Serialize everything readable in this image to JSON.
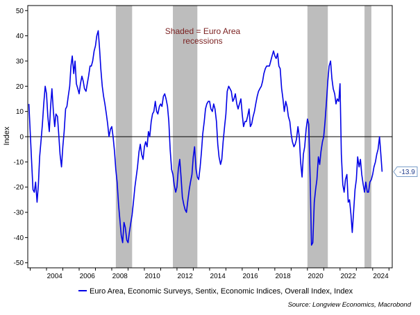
{
  "chart_data": {
    "type": "line",
    "ylabel": "Index",
    "ylim": [
      -52,
      52
    ],
    "y_ticks": [
      50,
      40,
      30,
      20,
      10,
      0,
      -10,
      -20,
      -30,
      -40,
      -50
    ],
    "xlim": [
      2002.85,
      2025.2
    ],
    "x_ticks": [
      2004,
      2006,
      2008,
      2010,
      2012,
      2014,
      2016,
      2018,
      2020,
      2022,
      2024
    ],
    "x_tick_labels": [
      "2004",
      "2006",
      "2008",
      "2010",
      "2012",
      "2014",
      "2016",
      "2018",
      "2020",
      "2022",
      "2024"
    ],
    "zero_line": 0,
    "recessions": [
      {
        "start": 2008.25,
        "end": 2009.25
      },
      {
        "start": 2011.75,
        "end": 2013.25
      },
      {
        "start": 2020.0,
        "end": 2021.25
      },
      {
        "start": 2023.5,
        "end": 2023.92
      }
    ],
    "annotation_lines": [
      "Shaded = Euro Area",
      "recessions"
    ],
    "annotation_color": "#7a1f1f",
    "series": [
      {
        "name": "Euro Area, Economic Surveys, Sentix, Economic Indices, Overall Index, Index",
        "color": "#0000e6",
        "last_value_label": "-13.9",
        "points": [
          [
            2002.92,
            13
          ],
          [
            2003.0,
            2
          ],
          [
            2003.08,
            -9
          ],
          [
            2003.17,
            -21
          ],
          [
            2003.25,
            -22
          ],
          [
            2003.33,
            -18
          ],
          [
            2003.42,
            -26
          ],
          [
            2003.5,
            -19
          ],
          [
            2003.58,
            -8
          ],
          [
            2003.67,
            -1
          ],
          [
            2003.75,
            5
          ],
          [
            2003.83,
            13
          ],
          [
            2003.92,
            20
          ],
          [
            2004.0,
            17
          ],
          [
            2004.08,
            8
          ],
          [
            2004.17,
            2
          ],
          [
            2004.25,
            12
          ],
          [
            2004.33,
            19
          ],
          [
            2004.42,
            10
          ],
          [
            2004.5,
            4
          ],
          [
            2004.58,
            9
          ],
          [
            2004.67,
            8
          ],
          [
            2004.75,
            1
          ],
          [
            2004.83,
            -7
          ],
          [
            2004.92,
            -12
          ],
          [
            2005.0,
            -4
          ],
          [
            2005.08,
            2
          ],
          [
            2005.17,
            11
          ],
          [
            2005.25,
            12
          ],
          [
            2005.33,
            16
          ],
          [
            2005.42,
            20
          ],
          [
            2005.5,
            28
          ],
          [
            2005.58,
            32
          ],
          [
            2005.67,
            25
          ],
          [
            2005.75,
            30
          ],
          [
            2005.83,
            21
          ],
          [
            2005.92,
            19
          ],
          [
            2006.0,
            17
          ],
          [
            2006.08,
            21
          ],
          [
            2006.17,
            24
          ],
          [
            2006.25,
            22
          ],
          [
            2006.33,
            19
          ],
          [
            2006.42,
            18
          ],
          [
            2006.5,
            21
          ],
          [
            2006.58,
            24
          ],
          [
            2006.67,
            28
          ],
          [
            2006.75,
            28
          ],
          [
            2006.83,
            30
          ],
          [
            2006.92,
            34
          ],
          [
            2007.0,
            36
          ],
          [
            2007.08,
            40
          ],
          [
            2007.17,
            42
          ],
          [
            2007.25,
            35
          ],
          [
            2007.33,
            27
          ],
          [
            2007.42,
            20
          ],
          [
            2007.5,
            16
          ],
          [
            2007.58,
            13
          ],
          [
            2007.67,
            9
          ],
          [
            2007.75,
            5
          ],
          [
            2007.83,
            0
          ],
          [
            2007.92,
            3
          ],
          [
            2008.0,
            4
          ],
          [
            2008.08,
            0
          ],
          [
            2008.17,
            -6
          ],
          [
            2008.25,
            -13
          ],
          [
            2008.33,
            -18
          ],
          [
            2008.42,
            -27
          ],
          [
            2008.5,
            -33
          ],
          [
            2008.58,
            -39
          ],
          [
            2008.67,
            -42
          ],
          [
            2008.75,
            -34
          ],
          [
            2008.83,
            -36
          ],
          [
            2008.92,
            -41
          ],
          [
            2009.0,
            -42
          ],
          [
            2009.08,
            -38
          ],
          [
            2009.17,
            -34
          ],
          [
            2009.25,
            -31
          ],
          [
            2009.33,
            -26
          ],
          [
            2009.42,
            -20
          ],
          [
            2009.5,
            -16
          ],
          [
            2009.58,
            -12
          ],
          [
            2009.67,
            -6
          ],
          [
            2009.75,
            -3
          ],
          [
            2009.83,
            -7
          ],
          [
            2009.92,
            -9
          ],
          [
            2010.0,
            -4
          ],
          [
            2010.08,
            -2
          ],
          [
            2010.17,
            -4
          ],
          [
            2010.25,
            2
          ],
          [
            2010.33,
            0
          ],
          [
            2010.42,
            6
          ],
          [
            2010.5,
            9
          ],
          [
            2010.58,
            10
          ],
          [
            2010.67,
            14
          ],
          [
            2010.75,
            10
          ],
          [
            2010.83,
            9
          ],
          [
            2010.92,
            12
          ],
          [
            2011.0,
            13
          ],
          [
            2011.08,
            12
          ],
          [
            2011.17,
            16
          ],
          [
            2011.25,
            17
          ],
          [
            2011.33,
            15
          ],
          [
            2011.42,
            12
          ],
          [
            2011.5,
            6
          ],
          [
            2011.58,
            -5
          ],
          [
            2011.67,
            -13
          ],
          [
            2011.75,
            -15
          ],
          [
            2011.83,
            -19
          ],
          [
            2011.92,
            -22
          ],
          [
            2012.0,
            -20
          ],
          [
            2012.08,
            -13
          ],
          [
            2012.17,
            -9
          ],
          [
            2012.25,
            -16
          ],
          [
            2012.33,
            -24
          ],
          [
            2012.42,
            -27
          ],
          [
            2012.5,
            -29
          ],
          [
            2012.58,
            -30
          ],
          [
            2012.67,
            -25
          ],
          [
            2012.75,
            -21
          ],
          [
            2012.83,
            -18
          ],
          [
            2012.92,
            -15
          ],
          [
            2013.0,
            -8
          ],
          [
            2013.08,
            -4
          ],
          [
            2013.17,
            -13
          ],
          [
            2013.25,
            -16
          ],
          [
            2013.33,
            -17
          ],
          [
            2013.42,
            -12
          ],
          [
            2013.5,
            -6
          ],
          [
            2013.58,
            1
          ],
          [
            2013.67,
            6
          ],
          [
            2013.75,
            11
          ],
          [
            2013.83,
            13
          ],
          [
            2013.92,
            14
          ],
          [
            2014.0,
            14
          ],
          [
            2014.08,
            11
          ],
          [
            2014.17,
            10
          ],
          [
            2014.25,
            13
          ],
          [
            2014.33,
            11
          ],
          [
            2014.42,
            6
          ],
          [
            2014.5,
            -3
          ],
          [
            2014.58,
            -8
          ],
          [
            2014.67,
            -11
          ],
          [
            2014.75,
            -9
          ],
          [
            2014.83,
            -2
          ],
          [
            2014.92,
            4
          ],
          [
            2015.0,
            9
          ],
          [
            2015.08,
            18
          ],
          [
            2015.17,
            20
          ],
          [
            2015.25,
            19
          ],
          [
            2015.33,
            18
          ],
          [
            2015.42,
            14
          ],
          [
            2015.5,
            15
          ],
          [
            2015.58,
            17
          ],
          [
            2015.67,
            13
          ],
          [
            2015.75,
            11
          ],
          [
            2015.83,
            13
          ],
          [
            2015.92,
            15
          ],
          [
            2016.0,
            9
          ],
          [
            2016.08,
            4
          ],
          [
            2016.17,
            6
          ],
          [
            2016.25,
            6
          ],
          [
            2016.33,
            8
          ],
          [
            2016.42,
            11
          ],
          [
            2016.5,
            4
          ],
          [
            2016.58,
            5
          ],
          [
            2016.67,
            8
          ],
          [
            2016.75,
            10
          ],
          [
            2016.83,
            13
          ],
          [
            2016.92,
            16
          ],
          [
            2017.0,
            18
          ],
          [
            2017.08,
            19
          ],
          [
            2017.17,
            20
          ],
          [
            2017.25,
            22
          ],
          [
            2017.33,
            25
          ],
          [
            2017.42,
            27
          ],
          [
            2017.5,
            28
          ],
          [
            2017.58,
            28
          ],
          [
            2017.67,
            28
          ],
          [
            2017.75,
            30
          ],
          [
            2017.83,
            32
          ],
          [
            2017.92,
            34
          ],
          [
            2018.0,
            32
          ],
          [
            2018.08,
            31
          ],
          [
            2018.17,
            33
          ],
          [
            2018.25,
            28
          ],
          [
            2018.33,
            27
          ],
          [
            2018.42,
            19
          ],
          [
            2018.5,
            15
          ],
          [
            2018.58,
            10
          ],
          [
            2018.67,
            14
          ],
          [
            2018.75,
            12
          ],
          [
            2018.83,
            8
          ],
          [
            2018.92,
            6
          ],
          [
            2019.0,
            1
          ],
          [
            2019.08,
            -2
          ],
          [
            2019.17,
            -4
          ],
          [
            2019.25,
            -3
          ],
          [
            2019.33,
            -1
          ],
          [
            2019.42,
            4
          ],
          [
            2019.5,
            0
          ],
          [
            2019.58,
            -10
          ],
          [
            2019.67,
            -16
          ],
          [
            2019.75,
            -7
          ],
          [
            2019.83,
            -4
          ],
          [
            2019.92,
            3
          ],
          [
            2020.0,
            7
          ],
          [
            2020.08,
            5
          ],
          [
            2020.17,
            -17
          ],
          [
            2020.25,
            -43
          ],
          [
            2020.33,
            -42
          ],
          [
            2020.42,
            -26
          ],
          [
            2020.5,
            -21
          ],
          [
            2020.58,
            -17
          ],
          [
            2020.67,
            -8
          ],
          [
            2020.75,
            -11
          ],
          [
            2020.83,
            -6
          ],
          [
            2020.92,
            -2
          ],
          [
            2021.0,
            0
          ],
          [
            2021.08,
            6
          ],
          [
            2021.17,
            14
          ],
          [
            2021.25,
            22
          ],
          [
            2021.33,
            28
          ],
          [
            2021.42,
            30
          ],
          [
            2021.5,
            23
          ],
          [
            2021.58,
            19
          ],
          [
            2021.67,
            17
          ],
          [
            2021.75,
            13
          ],
          [
            2021.83,
            15
          ],
          [
            2021.92,
            14
          ],
          [
            2022.0,
            21
          ],
          [
            2022.08,
            -7
          ],
          [
            2022.17,
            -19
          ],
          [
            2022.25,
            -22
          ],
          [
            2022.33,
            -17
          ],
          [
            2022.42,
            -15
          ],
          [
            2022.5,
            -26
          ],
          [
            2022.58,
            -25
          ],
          [
            2022.67,
            -31
          ],
          [
            2022.75,
            -38
          ],
          [
            2022.83,
            -30
          ],
          [
            2022.92,
            -21
          ],
          [
            2023.0,
            -17
          ],
          [
            2023.08,
            -8
          ],
          [
            2023.17,
            -12
          ],
          [
            2023.25,
            -9
          ],
          [
            2023.33,
            -15
          ],
          [
            2023.42,
            -19
          ],
          [
            2023.5,
            -22
          ],
          [
            2023.58,
            -18
          ],
          [
            2023.67,
            -22
          ],
          [
            2023.75,
            -22
          ],
          [
            2023.83,
            -18
          ],
          [
            2023.92,
            -17
          ],
          [
            2024.0,
            -15
          ],
          [
            2024.08,
            -12
          ],
          [
            2024.17,
            -10
          ],
          [
            2024.25,
            -7
          ],
          [
            2024.33,
            -5
          ],
          [
            2024.42,
            0
          ],
          [
            2024.5,
            -7
          ],
          [
            2024.58,
            -13.9
          ]
        ]
      }
    ]
  },
  "legend": {
    "label": "Euro Area, Economic Surveys, Sentix, Economic Indices, Overall Index, Index"
  },
  "source": "Source: Longview Economics, Macrobond"
}
